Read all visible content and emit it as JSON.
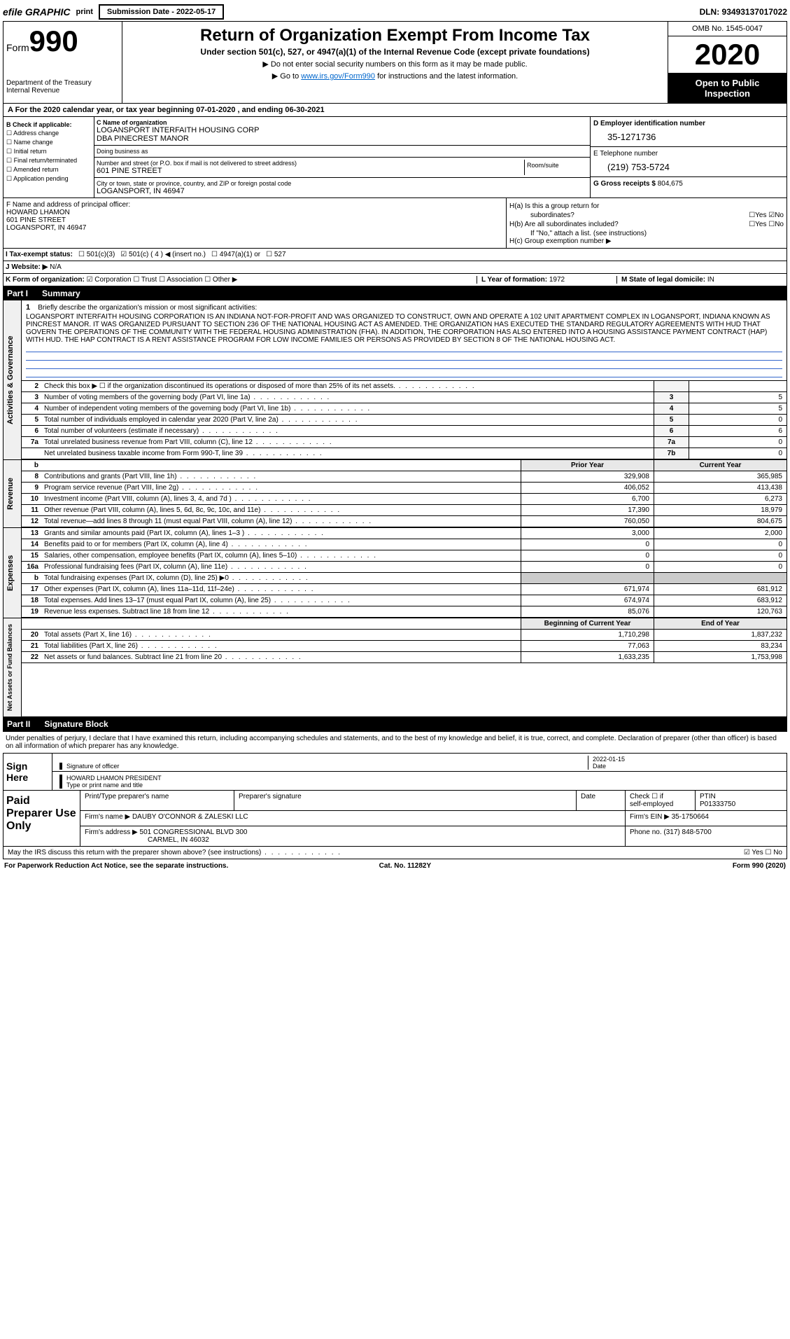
{
  "topbar": {
    "efile": "efile GRAPHIC",
    "print": "print",
    "submission_label": "Submission Date - 2022-05-17",
    "dln": "DLN: 93493137017022"
  },
  "header": {
    "form_prefix": "Form",
    "form_number": "990",
    "dept1": "Department of the Treasury",
    "dept2": "Internal Revenue",
    "title": "Return of Organization Exempt From Income Tax",
    "subtitle": "Under section 501(c), 527, or 4947(a)(1) of the Internal Revenue Code (except private foundations)",
    "instr1": "Do not enter social security numbers on this form as it may be made public.",
    "instr2_prefix": "Go to ",
    "instr2_link": "www.irs.gov/Form990",
    "instr2_suffix": " for instructions and the latest information.",
    "omb": "OMB No. 1545-0047",
    "year": "2020",
    "inspection": "Open to Public Inspection"
  },
  "tax_year_line": "A For the 2020 calendar year, or tax year beginning 07-01-2020    , and ending 06-30-2021",
  "section_b": {
    "label": "B Check if applicable:",
    "items": [
      "Address change",
      "Name change",
      "Initial return",
      "Final return/terminated",
      "Amended return",
      "Application pending"
    ]
  },
  "section_c": {
    "name_label": "C Name of organization",
    "name1": "LOGANSPORT INTERFAITH HOUSING CORP",
    "name2": "DBA PINECREST MANOR",
    "dba_label": "Doing business as",
    "addr_label": "Number and street (or P.O. box if mail is not delivered to street address)",
    "addr": "601 PINE STREET",
    "room_label": "Room/suite",
    "city_label": "City or town, state or province, country, and ZIP or foreign postal code",
    "city": "LOGANSPORT, IN  46947"
  },
  "section_d": {
    "label": "D Employer identification number",
    "value": "35-1271736"
  },
  "section_e": {
    "label": "E Telephone number",
    "value": "(219) 753-5724"
  },
  "section_g": {
    "label": "G Gross receipts $",
    "value": "804,675"
  },
  "section_f": {
    "label": "F  Name and address of principal officer:",
    "name": "HOWARD LHAMON",
    "addr1": "601 PINE STREET",
    "addr2": "LOGANSPORT, IN  46947"
  },
  "section_h": {
    "ha": "H(a)  Is this a group return for",
    "ha2": "subordinates?",
    "hb": "H(b)  Are all subordinates included?",
    "hb_note": "If \"No,\" attach a list. (see instructions)",
    "hc": "H(c)  Group exemption number ▶"
  },
  "tax_exempt": {
    "label": "I   Tax-exempt status:",
    "opt1": "501(c)(3)",
    "opt2": "501(c) ( 4 ) ◀ (insert no.)",
    "opt3": "4947(a)(1) or",
    "opt4": "527"
  },
  "website": {
    "label": "J   Website: ▶",
    "value": "N/A"
  },
  "section_k": {
    "label": "K Form of organization:",
    "opts": "☑ Corporation ☐ Trust ☐ Association ☐ Other ▶",
    "l_label": "L Year of formation:",
    "l_val": "1972",
    "m_label": "M State of legal domicile:",
    "m_val": "IN"
  },
  "part1": {
    "num": "Part I",
    "title": "Summary"
  },
  "mission": {
    "num": "1",
    "label": "Briefly describe the organization's mission or most significant activities:",
    "text": "LOGANSPORT INTERFAITH HOUSING CORPORATION IS AN INDIANA NOT-FOR-PROFIT AND WAS ORGANIZED TO CONSTRUCT, OWN AND OPERATE A 102 UNIT APARTMENT COMPLEX IN LOGANSPORT, INDIANA KNOWN AS PINCREST MANOR. IT WAS ORGANIZED PURSUANT TO SECTION 236 OF THE NATIONAL HOUSING ACT AS AMENDED. THE ORGANIZATION HAS EXECUTED THE STANDARD REGULATORY AGREEMENTS WITH HUD THAT GOVERN THE OPERATIONS OF THE COMMUNITY WITH THE FEDERAL HOUSING ADMINISTRATION (FHA). IN ADDITION, THE CORPORATION HAS ALSO ENTERED INTO A HOUSING ASSISTANCE PAYMENT CONTRACT (HAP) WITH HUD. THE HAP CONTRACT IS A RENT ASSISTANCE PROGRAM FOR LOW INCOME FAMILIES OR PERSONS AS PROVIDED BY SECTION 8 OF THE NATIONAL HOUSING ACT."
  },
  "governance_rows": [
    {
      "num": "2",
      "label": "Check this box ▶ ☐ if the organization discontinued its operations or disposed of more than 25% of its net assets.",
      "cell": "",
      "val": ""
    },
    {
      "num": "3",
      "label": "Number of voting members of the governing body (Part VI, line 1a)",
      "cell": "3",
      "val": "5"
    },
    {
      "num": "4",
      "label": "Number of independent voting members of the governing body (Part VI, line 1b)",
      "cell": "4",
      "val": "5"
    },
    {
      "num": "5",
      "label": "Total number of individuals employed in calendar year 2020 (Part V, line 2a)",
      "cell": "5",
      "val": "0"
    },
    {
      "num": "6",
      "label": "Total number of volunteers (estimate if necessary)",
      "cell": "6",
      "val": "6"
    },
    {
      "num": "7a",
      "label": "Total unrelated business revenue from Part VIII, column (C), line 12",
      "cell": "7a",
      "val": "0"
    },
    {
      "num": "",
      "label": "Net unrelated business taxable income from Form 990-T, line 39",
      "cell": "7b",
      "val": "0"
    }
  ],
  "year_headers": {
    "prior": "Prior Year",
    "current": "Current Year",
    "boy": "Beginning of Current Year",
    "eoy": "End of Year",
    "b": "b"
  },
  "revenue_rows": [
    {
      "num": "8",
      "label": "Contributions and grants (Part VIII, line 1h)",
      "prior": "329,908",
      "curr": "365,985"
    },
    {
      "num": "9",
      "label": "Program service revenue (Part VIII, line 2g)",
      "prior": "406,052",
      "curr": "413,438"
    },
    {
      "num": "10",
      "label": "Investment income (Part VIII, column (A), lines 3, 4, and 7d )",
      "prior": "6,700",
      "curr": "6,273"
    },
    {
      "num": "11",
      "label": "Other revenue (Part VIII, column (A), lines 5, 6d, 8c, 9c, 10c, and 11e)",
      "prior": "17,390",
      "curr": "18,979"
    },
    {
      "num": "12",
      "label": "Total revenue—add lines 8 through 11 (must equal Part VIII, column (A), line 12)",
      "prior": "760,050",
      "curr": "804,675"
    }
  ],
  "expense_rows": [
    {
      "num": "13",
      "label": "Grants and similar amounts paid (Part IX, column (A), lines 1–3 )",
      "prior": "3,000",
      "curr": "2,000"
    },
    {
      "num": "14",
      "label": "Benefits paid to or for members (Part IX, column (A), line 4)",
      "prior": "0",
      "curr": "0"
    },
    {
      "num": "15",
      "label": "Salaries, other compensation, employee benefits (Part IX, column (A), lines 5–10)",
      "prior": "0",
      "curr": "0"
    },
    {
      "num": "16a",
      "label": "Professional fundraising fees (Part IX, column (A), line 11e)",
      "prior": "0",
      "curr": "0"
    },
    {
      "num": "b",
      "label": "Total fundraising expenses (Part IX, column (D), line 25) ▶0",
      "prior": "",
      "curr": "",
      "shaded": true
    },
    {
      "num": "17",
      "label": "Other expenses (Part IX, column (A), lines 11a–11d, 11f–24e)",
      "prior": "671,974",
      "curr": "681,912"
    },
    {
      "num": "18",
      "label": "Total expenses. Add lines 13–17 (must equal Part IX, column (A), line 25)",
      "prior": "674,974",
      "curr": "683,912"
    },
    {
      "num": "19",
      "label": "Revenue less expenses. Subtract line 18 from line 12",
      "prior": "85,076",
      "curr": "120,763"
    }
  ],
  "netassets_rows": [
    {
      "num": "20",
      "label": "Total assets (Part X, line 16)",
      "prior": "1,710,298",
      "curr": "1,837,232"
    },
    {
      "num": "21",
      "label": "Total liabilities (Part X, line 26)",
      "prior": "77,063",
      "curr": "83,234"
    },
    {
      "num": "22",
      "label": "Net assets or fund balances. Subtract line 21 from line 20",
      "prior": "1,633,235",
      "curr": "1,753,998"
    }
  ],
  "vert_labels": {
    "gov": "Activities & Governance",
    "rev": "Revenue",
    "exp": "Expenses",
    "net": "Net Assets or Fund Balances"
  },
  "part2": {
    "num": "Part II",
    "title": "Signature Block"
  },
  "sig_intro": "Under penalties of perjury, I declare that I have examined this return, including accompanying schedules and statements, and to the best of my knowledge and belief, it is true, correct, and complete. Declaration of preparer (other than officer) is based on all information of which preparer has any knowledge.",
  "sign": {
    "label": "Sign Here",
    "sig_label": "Signature of officer",
    "date_label": "Date",
    "date_val": "2022-01-15",
    "name": "HOWARD LHAMON  PRESIDENT",
    "name_label": "Type or print name and title"
  },
  "paid": {
    "label": "Paid Preparer Use Only",
    "h1": "Print/Type preparer's name",
    "h2": "Preparer's signature",
    "h3": "Date",
    "h4_a": "Check ☐ if",
    "h4_b": "self-employed",
    "h5": "PTIN",
    "ptin": "P01333750",
    "firm_label": "Firm's name      ▶",
    "firm": "DAUBY O'CONNOR & ZALESKI LLC",
    "ein_label": "Firm's EIN ▶",
    "ein": "35-1750664",
    "addr_label": "Firm's address ▶",
    "addr1": "501 CONGRESSIONAL BLVD 300",
    "addr2": "CARMEL, IN  46032",
    "phone_label": "Phone no.",
    "phone": "(317) 848-5700"
  },
  "footer": {
    "discuss": "May the IRS discuss this return with the preparer shown above? (see instructions)",
    "paperwork": "For Paperwork Reduction Act Notice, see the separate instructions.",
    "cat": "Cat. No. 11282Y",
    "form": "Form 990 (2020)"
  }
}
